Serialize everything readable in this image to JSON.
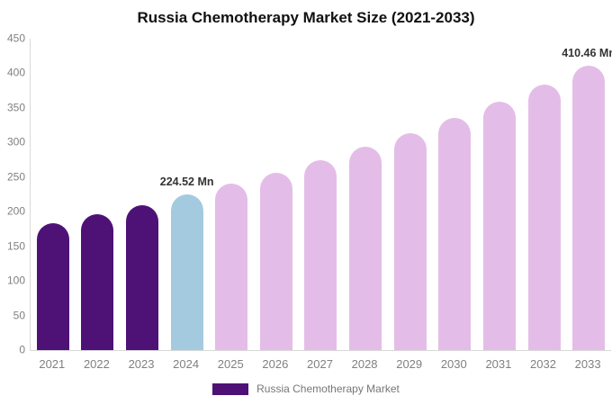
{
  "title": "Russia Chemotherapy Market Size (2021-2033)",
  "chart_data": {
    "type": "bar",
    "title": "Russia Chemotherapy Market Size (2021-2033)",
    "categories": [
      "2021",
      "2022",
      "2023",
      "2024",
      "2025",
      "2026",
      "2027",
      "2028",
      "2029",
      "2030",
      "2031",
      "2032",
      "2033"
    ],
    "series": [
      {
        "name": "Russia Chemotherapy Market",
        "values": [
          183.6,
          196.3,
          210.0,
          224.52,
          240.1,
          256.7,
          274.5,
          293.6,
          313.9,
          335.7,
          359.0,
          383.9,
          410.46
        ]
      }
    ],
    "unit": "Mn",
    "xlabel": "",
    "ylabel": "",
    "ylim": [
      0,
      450
    ],
    "y_ticks": [
      0,
      50,
      100,
      150,
      200,
      250,
      300,
      350,
      400,
      450
    ],
    "grid": false,
    "legend_position": "bottom",
    "bar_colors": [
      "#4E1277",
      "#4E1277",
      "#4E1277",
      "#A4CADF",
      "#E3BDE7",
      "#E3BDE7",
      "#E3BDE7",
      "#E3BDE7",
      "#E3BDE7",
      "#E3BDE7",
      "#E3BDE7",
      "#E3BDE7",
      "#E3BDE7"
    ],
    "data_labels": [
      {
        "category": "2024",
        "text": "224.52 Mn"
      },
      {
        "category": "2033",
        "text": "410.46 Mn"
      }
    ]
  },
  "legend": {
    "items": [
      {
        "label": "Russia Chemotherapy Market",
        "color": "#4E1277"
      }
    ]
  },
  "colors": {
    "historical_bar": "#4E1277",
    "current_year_bar": "#A4CADF",
    "forecast_bar": "#E3BDE7",
    "axis_line": "#d9d9d9",
    "axis_text": "#808080",
    "title_text": "#111111",
    "data_label_text": "#333333",
    "legend_text": "#777777",
    "background": "#ffffff"
  }
}
